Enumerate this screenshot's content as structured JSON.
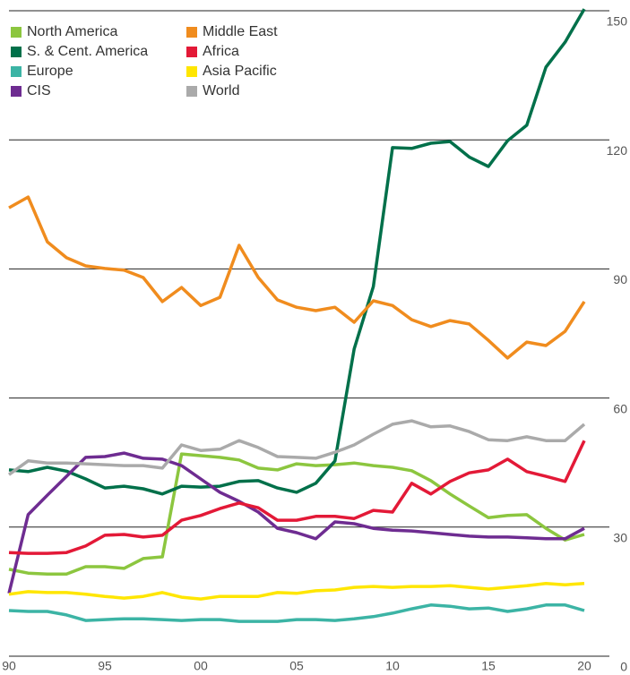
{
  "chart_data": {
    "type": "line",
    "x": [
      1990,
      1991,
      1992,
      1993,
      1994,
      1995,
      1996,
      1997,
      1998,
      1999,
      2000,
      2001,
      2002,
      2003,
      2004,
      2005,
      2006,
      2007,
      2008,
      2009,
      2010,
      2011,
      2012,
      2013,
      2014,
      2015,
      2016,
      2017,
      2018,
      2019,
      2020
    ],
    "xlim": [
      1990,
      2020
    ],
    "xticks": [
      {
        "value": 1990,
        "label": "90"
      },
      {
        "value": 1995,
        "label": "95"
      },
      {
        "value": 2000,
        "label": "00"
      },
      {
        "value": 2005,
        "label": "05"
      },
      {
        "value": 2010,
        "label": "10"
      },
      {
        "value": 2015,
        "label": "15"
      },
      {
        "value": 2020,
        "label": "20"
      }
    ],
    "ylim": [
      0,
      150
    ],
    "yticks": [
      0,
      30,
      60,
      90,
      120,
      150
    ],
    "grid": true,
    "legend": "upper left",
    "series": [
      {
        "name": "North America",
        "color": "#8cc63f",
        "values": [
          20.2,
          19.3,
          19.1,
          19.1,
          20.8,
          20.8,
          20.4,
          22.7,
          23.1,
          47,
          46.6,
          46.2,
          45.6,
          43.7,
          43.3,
          44.7,
          44.3,
          44.5,
          44.9,
          44.3,
          43.9,
          43.1,
          40.8,
          37.7,
          34.9,
          32.2,
          32.7,
          32.9,
          29.7,
          27,
          28.3
        ]
      },
      {
        "name": "S. & Cent. America",
        "color": "#00704a",
        "values": [
          43.3,
          42.9,
          43.9,
          43,
          41.2,
          39.1,
          39.5,
          38.9,
          37.7,
          39.5,
          39.3,
          39.5,
          40.6,
          40.8,
          39.1,
          38.1,
          40.2,
          45.4,
          71.4,
          85.9,
          118.2,
          118,
          119.2,
          119.6,
          116,
          113.8,
          119.8,
          123.4,
          136.9,
          142.7,
          150.4
        ]
      },
      {
        "name": "Europe",
        "color": "#3cb4a5",
        "values": [
          10.6,
          10.4,
          10.4,
          9.6,
          8.3,
          8.5,
          8.7,
          8.7,
          8.5,
          8.3,
          8.5,
          8.5,
          8.1,
          8.1,
          8.1,
          8.5,
          8.5,
          8.3,
          8.7,
          9.2,
          10,
          11,
          11.9,
          11.6,
          11,
          11.2,
          10.4,
          11,
          11.9,
          11.9,
          10.6
        ]
      },
      {
        "name": "CIS",
        "color": "#6e2c91",
        "values": [
          14.6,
          32.9,
          37.4,
          41.8,
          46.2,
          46.4,
          47.2,
          46,
          45.8,
          44.3,
          41.2,
          38.1,
          36,
          33.5,
          29.7,
          28.7,
          27.3,
          31.2,
          30.8,
          29.7,
          29.3,
          29.1,
          28.7,
          28.3,
          27.9,
          27.7,
          27.7,
          27.5,
          27.3,
          27.3,
          29.7
        ]
      },
      {
        "name": "Middle East",
        "color": "#f08c1e",
        "values": [
          104.2,
          106.7,
          96.3,
          92.6,
          90.7,
          90.1,
          89.7,
          88,
          82.4,
          85.7,
          81.5,
          83.4,
          95.5,
          88,
          82.8,
          81.1,
          80.3,
          81.1,
          77.6,
          82.6,
          81.5,
          78.2,
          76.6,
          78,
          77.2,
          73.4,
          69.3,
          73,
          72.2,
          75.5,
          82.4
        ]
      },
      {
        "name": "Africa",
        "color": "#e31937",
        "values": [
          24.1,
          23.9,
          23.9,
          24.1,
          25.6,
          28.1,
          28.3,
          27.7,
          28.1,
          31.6,
          32.7,
          34.3,
          35.6,
          34.5,
          31.6,
          31.6,
          32.5,
          32.5,
          32,
          33.9,
          33.5,
          40.2,
          37.7,
          40.6,
          42.6,
          43.3,
          45.8,
          42.9,
          41.8,
          40.6,
          50.1
        ]
      },
      {
        "name": "Asia Pacific",
        "color": "#ffe600",
        "values": [
          14.4,
          15,
          14.8,
          14.8,
          14.4,
          13.9,
          13.5,
          13.9,
          14.8,
          13.7,
          13.3,
          13.9,
          13.9,
          13.9,
          14.8,
          14.6,
          15.2,
          15.4,
          16,
          16.2,
          16,
          16.2,
          16.2,
          16.4,
          16,
          15.6,
          16,
          16.4,
          16.9,
          16.6,
          16.9
        ]
      },
      {
        "name": "World",
        "color": "#aaaaaa",
        "values": [
          42.2,
          45.4,
          44.9,
          44.9,
          44.7,
          44.5,
          44.3,
          44.3,
          43.7,
          49.1,
          47.8,
          48.1,
          50.1,
          48.5,
          46.4,
          46.2,
          46,
          47.4,
          49.1,
          51.6,
          53.9,
          54.7,
          53.3,
          53.5,
          52.2,
          50.3,
          50.1,
          51,
          50.1,
          50.1,
          53.9
        ]
      }
    ]
  }
}
